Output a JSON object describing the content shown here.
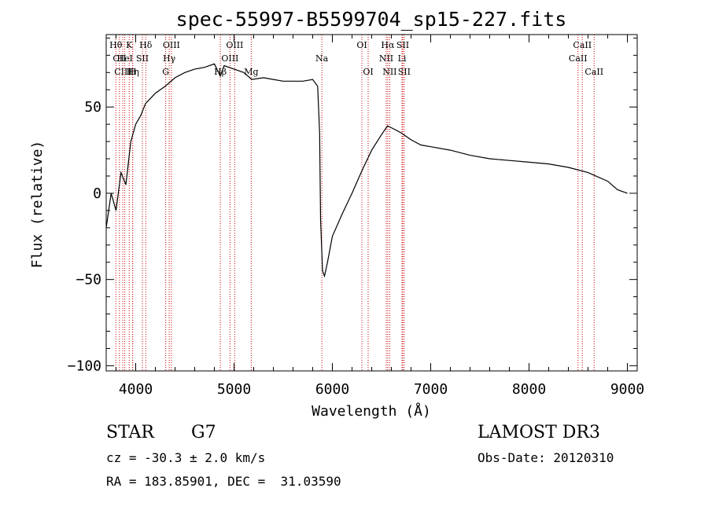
{
  "chart_data": {
    "type": "line",
    "title": "spec-55997-B5599704_sp15-227.fits",
    "xlabel": "Wavelength (Å)",
    "ylabel": "Flux (relative)",
    "xlim": [
      3700,
      9100
    ],
    "ylim": [
      -103,
      92
    ],
    "xticks": [
      4000,
      5000,
      6000,
      7000,
      8000,
      9000
    ],
    "yticks": [
      -100,
      -50,
      0,
      50
    ],
    "series": [
      {
        "name": "flux",
        "x": [
          3700,
          3750,
          3800,
          3850,
          3900,
          3950,
          4000,
          4050,
          4100,
          4150,
          4200,
          4300,
          4400,
          4500,
          4600,
          4700,
          4800,
          4860,
          4900,
          5000,
          5100,
          5180,
          5300,
          5400,
          5500,
          5600,
          5700,
          5800,
          5850,
          5870,
          5880,
          5900,
          5920,
          5950,
          6000,
          6100,
          6200,
          6300,
          6400,
          6500,
          6560,
          6600,
          6700,
          6800,
          6900,
          7000,
          7200,
          7400,
          7600,
          7800,
          8000,
          8200,
          8400,
          8600,
          8800,
          8900,
          9000
        ],
        "y": [
          -20,
          0,
          -10,
          12,
          5,
          30,
          40,
          45,
          52,
          55,
          58,
          62,
          67,
          70,
          72,
          73,
          75,
          68,
          74,
          72,
          70,
          66,
          67,
          66,
          65,
          65,
          65,
          66,
          62,
          35,
          -15,
          -45,
          -48,
          -40,
          -25,
          -12,
          0,
          13,
          25,
          34,
          39,
          38,
          35,
          31,
          28,
          27,
          25,
          22,
          20,
          19,
          18,
          17,
          15,
          12,
          7,
          2,
          0
        ]
      }
    ],
    "annotations": [
      {
        "label": "Hθ",
        "x": 3798,
        "row": 1
      },
      {
        "label": "CII",
        "x": 3835,
        "row": 2
      },
      {
        "label": "CIII",
        "x": 3868,
        "row": 3
      },
      {
        "label": "HeI",
        "x": 3889,
        "row": 2
      },
      {
        "label": "K",
        "x": 3934,
        "row": 1
      },
      {
        "label": "Hη",
        "x": 3970,
        "row": 3
      },
      {
        "label": "SII",
        "x": 4068,
        "row": 2
      },
      {
        "label": "H",
        "x": 3968,
        "row": 3
      },
      {
        "label": "Hδ",
        "x": 4102,
        "row": 1
      },
      {
        "label": "OIII",
        "x": 4363,
        "row": 1
      },
      {
        "label": "Hγ",
        "x": 4341,
        "row": 2
      },
      {
        "label": "G",
        "x": 4305,
        "row": 3
      },
      {
        "label": "Hβ",
        "x": 4861,
        "row": 3
      },
      {
        "label": "OIII",
        "x": 5007,
        "row": 1
      },
      {
        "label": "OIII",
        "x": 4959,
        "row": 2
      },
      {
        "label": "Mg",
        "x": 5175,
        "row": 3
      },
      {
        "label": "Na",
        "x": 5893,
        "row": 2
      },
      {
        "label": "OI",
        "x": 6300,
        "row": 1
      },
      {
        "label": "OI",
        "x": 6364,
        "row": 3
      },
      {
        "label": "Hα",
        "x": 6563,
        "row": 1
      },
      {
        "label": "NII",
        "x": 6548,
        "row": 2
      },
      {
        "label": "NII",
        "x": 6583,
        "row": 3
      },
      {
        "label": "SII",
        "x": 6716,
        "row": 1
      },
      {
        "label": "Li",
        "x": 6708,
        "row": 2
      },
      {
        "label": "SII",
        "x": 6731,
        "row": 3
      },
      {
        "label": "CaII",
        "x": 8542,
        "row": 1
      },
      {
        "label": "CaII",
        "x": 8498,
        "row": 2
      },
      {
        "label": "CaII",
        "x": 8662,
        "row": 3
      }
    ],
    "line_color": "#000000",
    "marker_color": "#cc0000"
  },
  "info": {
    "object_class": "STAR",
    "subclass": "G7",
    "survey": "LAMOST DR3",
    "redshift": "cz = -30.3 ± 2.0 km/s",
    "obs_date": "Obs-Date: 20120310",
    "coords": "RA = 183.85901, DEC =  31.03590"
  }
}
